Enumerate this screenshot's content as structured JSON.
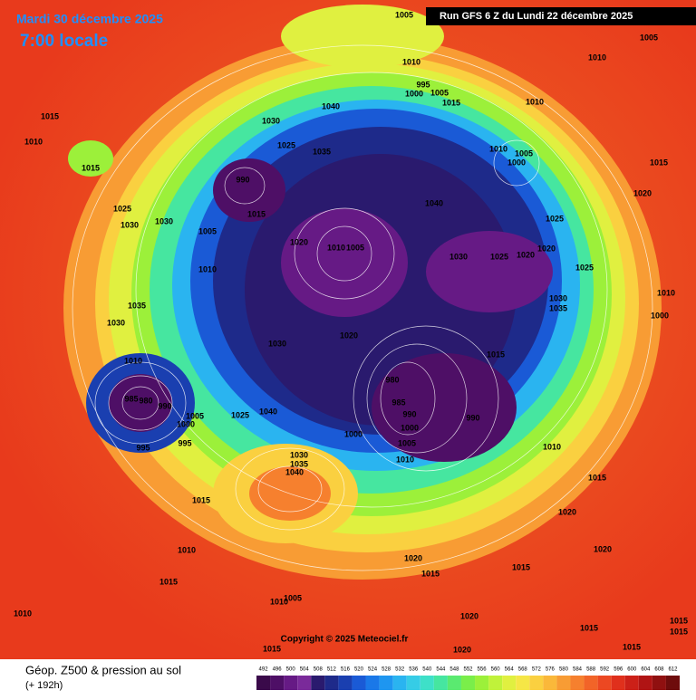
{
  "header": {
    "date": "Mardi 30 décembre 2025",
    "time": "7:00 locale",
    "run": "Run GFS 6 Z du Lundi 22 décembre 2025"
  },
  "footer": {
    "title": "Géop. Z500 & pression au sol",
    "subtitle": "(+ 192h)",
    "copyright": "Copyright © 2025 Meteociel.fr"
  },
  "scale": {
    "values": [
      492,
      496,
      500,
      504,
      508,
      512,
      516,
      520,
      524,
      528,
      532,
      536,
      540,
      544,
      548,
      552,
      556,
      560,
      564,
      568,
      572,
      576,
      580,
      584,
      588,
      592,
      596,
      600,
      604,
      608,
      612
    ],
    "colors": [
      "#3a0a4a",
      "#4e0f66",
      "#661a85",
      "#7a2a9a",
      "#2a1a6e",
      "#1e2a8a",
      "#1a3fb0",
      "#1a5ad6",
      "#1a78e8",
      "#1e96f0",
      "#2ab4f0",
      "#36cce6",
      "#3ee0c8",
      "#46e6a0",
      "#5aea70",
      "#7aee4a",
      "#9cf03a",
      "#c0f23a",
      "#e0f040",
      "#f6e646",
      "#fad040",
      "#fab83a",
      "#f89c34",
      "#f6802e",
      "#f26428",
      "#ec4822",
      "#e0301c",
      "#cc2018",
      "#b01414",
      "#901010",
      "#6e0c0c"
    ]
  },
  "isobar_labels": [
    "1005",
    "1005",
    "1010",
    "1010",
    "995",
    "1000",
    "1005",
    "1015",
    "1010",
    "1040",
    "1030",
    "1015",
    "1010",
    "1015",
    "1025",
    "1035",
    "1010",
    "1005",
    "1000",
    "1015",
    "990",
    "1020",
    "1040",
    "1025",
    "1030",
    "1030",
    "1015",
    "1025",
    "1005",
    "1020",
    "1010",
    "1005",
    "1030",
    "1025",
    "1020",
    "1020",
    "1025",
    "1010",
    "1010",
    "1035",
    "1030",
    "1035",
    "1000",
    "1030",
    "1020",
    "1030",
    "1015",
    "1010",
    "980",
    "985",
    "980",
    "985",
    "990",
    "1005",
    "1000",
    "990",
    "990",
    "1000",
    "1025",
    "1040",
    "1000",
    "995",
    "995",
    "1005",
    "1010",
    "1030",
    "1035",
    "1040",
    "1010",
    "1015",
    "1015",
    "1020",
    "1010",
    "1020",
    "1020",
    "1015",
    "1015",
    "1015",
    "1010",
    "1005",
    "1020",
    "1010",
    "1015",
    "1015",
    "1015",
    "1015",
    "1020",
    "1015"
  ]
}
